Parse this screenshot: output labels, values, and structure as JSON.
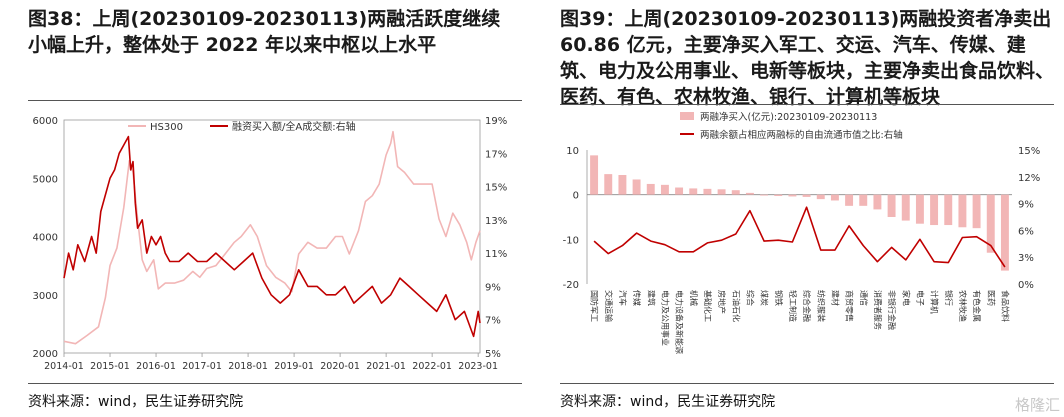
{
  "left": {
    "title": "图38：上周(20230109-20230113)两融活跃度继续小幅上升，整体处于 2022 年以来中枢以上水平",
    "source": "资料来源：wind，民生证券研究院",
    "chart_data": {
      "type": "line",
      "series": [
        {
          "name": "HS300",
          "color": "#f2b6b6",
          "axis": "left",
          "x": [
            2014.0,
            2014.25,
            2014.5,
            2014.75,
            2014.9,
            2015.0,
            2015.15,
            2015.3,
            2015.42,
            2015.5,
            2015.6,
            2015.7,
            2015.8,
            2015.95,
            2016.05,
            2016.2,
            2016.4,
            2016.6,
            2016.8,
            2016.95,
            2017.1,
            2017.3,
            2017.5,
            2017.7,
            2017.85,
            2018.05,
            2018.2,
            2018.4,
            2018.6,
            2018.8,
            2018.95,
            2019.1,
            2019.3,
            2019.5,
            2019.7,
            2019.9,
            2020.05,
            2020.2,
            2020.4,
            2020.55,
            2020.7,
            2020.85,
            2021.0,
            2021.1,
            2021.15,
            2021.25,
            2021.4,
            2021.6,
            2021.8,
            2022.0,
            2022.15,
            2022.3,
            2022.45,
            2022.6,
            2022.75,
            2022.85,
            2022.95,
            2023.04
          ],
          "y": [
            2200,
            2160,
            2300,
            2450,
            2950,
            3500,
            3800,
            4500,
            5300,
            5100,
            4300,
            3600,
            3400,
            3600,
            3100,
            3200,
            3200,
            3250,
            3400,
            3300,
            3450,
            3500,
            3700,
            3900,
            4000,
            4200,
            4000,
            3500,
            3300,
            3200,
            3050,
            3700,
            3900,
            3800,
            3800,
            4000,
            4000,
            3700,
            4100,
            4600,
            4700,
            4900,
            5400,
            5600,
            5800,
            5200,
            5100,
            4900,
            4900,
            4900,
            4300,
            4000,
            4400,
            4200,
            3900,
            3600,
            3900,
            4100
          ]
        },
        {
          "name": "融资买入额/全A成交额:右轴",
          "color": "#c00000",
          "axis": "right",
          "x": [
            2014.0,
            2014.1,
            2014.2,
            2014.3,
            2014.45,
            2014.6,
            2014.7,
            2014.8,
            2014.9,
            2015.0,
            2015.1,
            2015.2,
            2015.3,
            2015.4,
            2015.45,
            2015.5,
            2015.55,
            2015.6,
            2015.7,
            2015.8,
            2015.9,
            2016.0,
            2016.1,
            2016.2,
            2016.3,
            2016.5,
            2016.7,
            2016.9,
            2017.1,
            2017.3,
            2017.5,
            2017.7,
            2017.9,
            2018.1,
            2018.3,
            2018.5,
            2018.7,
            2018.9,
            2019.1,
            2019.3,
            2019.5,
            2019.7,
            2019.9,
            2020.1,
            2020.3,
            2020.5,
            2020.7,
            2020.9,
            2021.1,
            2021.3,
            2021.5,
            2021.7,
            2021.9,
            2022.1,
            2022.3,
            2022.5,
            2022.7,
            2022.9,
            2023.0,
            2023.04
          ],
          "y": [
            9.5,
            11.0,
            10.0,
            11.5,
            10.5,
            12.0,
            11.0,
            13.5,
            14.5,
            15.5,
            16.0,
            17.0,
            17.5,
            18.0,
            16.0,
            16.5,
            14.0,
            12.5,
            13.0,
            11.0,
            12.0,
            11.5,
            12.0,
            11.0,
            10.5,
            10.5,
            11.0,
            10.5,
            10.5,
            11.0,
            10.5,
            10.0,
            10.5,
            11.0,
            9.5,
            8.5,
            8.0,
            8.5,
            10.0,
            9.0,
            9.0,
            8.5,
            8.5,
            9.0,
            8.0,
            8.5,
            9.0,
            8.0,
            8.5,
            9.5,
            9.0,
            8.5,
            8.0,
            7.5,
            8.5,
            7.0,
            7.5,
            6.0,
            7.5,
            6.8
          ]
        }
      ],
      "xticks": [
        "2014-01",
        "2015-01",
        "2016-01",
        "2017-01",
        "2018-01",
        "2019-01",
        "2020-01",
        "2021-01",
        "2022-01",
        "2023-01"
      ],
      "xlim": [
        2014.0,
        2023.04
      ],
      "ylim_left": [
        2000,
        6000
      ],
      "yticks_left": [
        "2000",
        "3000",
        "4000",
        "5000",
        "6000"
      ],
      "ylim_right": [
        5,
        19
      ],
      "yticks_right": [
        "5%",
        "7%",
        "9%",
        "11%",
        "13%",
        "15%",
        "17%",
        "19%"
      ],
      "legend_position": "top",
      "grid": false
    }
  },
  "right": {
    "title": "图39：上周(20230109-20230113)两融投资者净卖出 60.86 亿元，主要净买入军工、交运、汽车、传媒、建筑、电力及公用事业、电新等板块，主要净卖出食品饮料、医药、有色、农林牧渔、银行、计算机等板块",
    "source": "资料来源：wind，民生证券研究院",
    "watermark": "格隆汇",
    "chart_data": {
      "type": "bar",
      "categories": [
        "国防军工",
        "交通运输",
        "汽车",
        "传媒",
        "建筑",
        "电力及公用事业",
        "电力设备及新能源",
        "机械",
        "基础化工",
        "房地产",
        "石油石化",
        "综合",
        "煤炭",
        "钢铁",
        "轻工制造",
        "综合金融",
        "纺织服装",
        "建材",
        "商贸零售",
        "通信",
        "消费者服务",
        "非银行金融",
        "家电",
        "电子",
        "计算机",
        "银行",
        "农林牧渔",
        "有色金属",
        "医药",
        "食品饮料"
      ],
      "series": [
        {
          "name": "两融净买入(亿元):20230109-20230113",
          "type": "bar",
          "color": "#f2b6b6",
          "axis": "left",
          "values": [
            8.8,
            4.6,
            4.4,
            3.4,
            2.4,
            2.2,
            1.6,
            1.4,
            1.3,
            1.2,
            1.0,
            0.4,
            -0.2,
            -0.3,
            -0.4,
            -0.5,
            -1.0,
            -1.3,
            -2.5,
            -2.5,
            -3.3,
            -5.0,
            -5.8,
            -6.5,
            -6.8,
            -6.8,
            -7.3,
            -7.5,
            -13.0,
            -17.0
          ]
        },
        {
          "name": "两融余额占相应两融标的自由流通市值之比:右轴",
          "type": "line",
          "color": "#c00000",
          "axis": "right",
          "values": [
            4.8,
            3.4,
            4.3,
            5.7,
            4.8,
            4.4,
            3.6,
            3.6,
            4.6,
            4.9,
            5.6,
            8.2,
            4.8,
            4.9,
            4.7,
            8.6,
            3.8,
            3.8,
            6.5,
            4.3,
            2.5,
            4.1,
            2.7,
            5.0,
            2.5,
            2.4,
            5.2,
            5.3,
            4.3,
            1.9
          ]
        }
      ],
      "ylim_left": [
        -20,
        10
      ],
      "yticks_left": [
        "-20",
        "-10",
        "0",
        "10"
      ],
      "ylim_right": [
        0,
        15
      ],
      "yticks_right": [
        "0%",
        "3%",
        "6%",
        "9%",
        "12%",
        "15%"
      ],
      "legend_position": "top",
      "grid": false
    }
  }
}
